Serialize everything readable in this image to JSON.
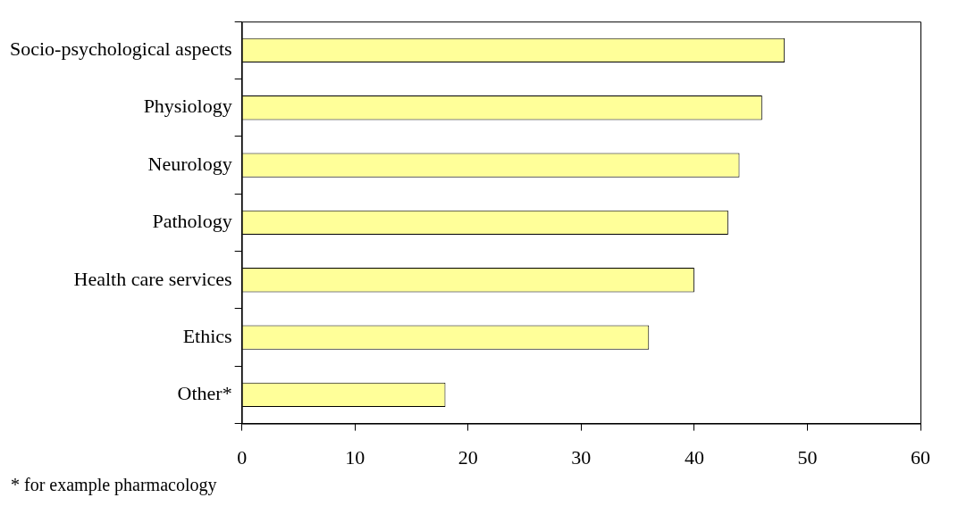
{
  "chart_data": {
    "type": "bar",
    "orientation": "horizontal",
    "categories": [
      "Socio-psychological aspects",
      "Physiology",
      "Neurology",
      "Pathology",
      "Health care services",
      "Ethics",
      "Other*"
    ],
    "values": [
      48,
      46,
      44,
      43,
      40,
      36,
      18
    ],
    "color": "#ffff99",
    "xlim": [
      0,
      60
    ],
    "xticks": [
      0,
      10,
      20,
      30,
      40,
      50,
      60
    ],
    "grid": false,
    "legend": false,
    "annotations": [
      "* for example pharmacology"
    ]
  }
}
